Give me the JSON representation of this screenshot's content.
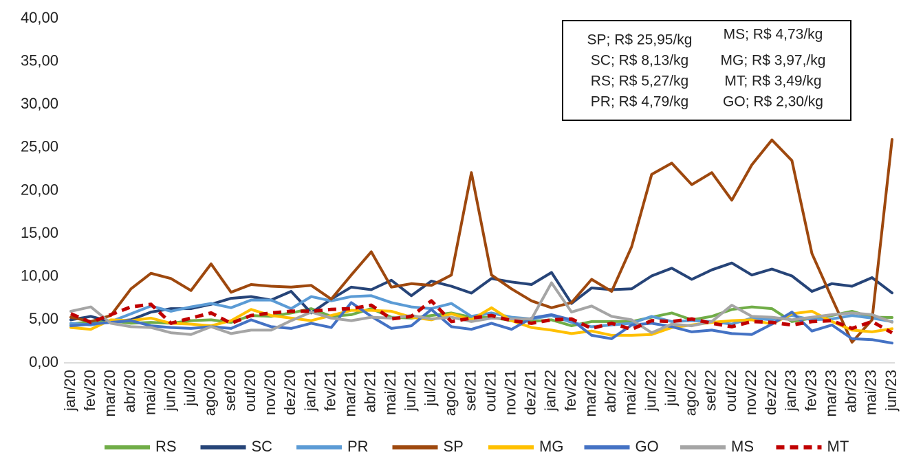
{
  "chart_data": {
    "type": "line",
    "categories": [
      "jan/20",
      "fev/20",
      "mar/20",
      "abr/20",
      "mai/20",
      "jun/20",
      "jul/20",
      "ago/20",
      "set/20",
      "out/20",
      "nov/20",
      "dez/20",
      "jan/21",
      "fev/21",
      "mar/21",
      "abr/21",
      "mai/21",
      "jun/21",
      "jul/21",
      "ago/21",
      "set/21",
      "out/21",
      "nov/21",
      "dez/21",
      "jan/22",
      "fev/22",
      "mar/22",
      "abr/22",
      "mai/22",
      "jun/22",
      "jul/22",
      "ago/22",
      "set/22",
      "out/22",
      "nov/22",
      "dez/22",
      "jan/23",
      "fev/23",
      "mar/23",
      "abr/23",
      "mai/23",
      "jun/23"
    ],
    "ylim": [
      0,
      40
    ],
    "yticks": [
      {
        "value": 0,
        "label": "0,00"
      },
      {
        "value": 5,
        "label": "5,00"
      },
      {
        "value": 10,
        "label": "10,00"
      },
      {
        "value": 15,
        "label": "15,00"
      },
      {
        "value": 20,
        "label": "20,00"
      },
      {
        "value": 25,
        "label": "25,00"
      },
      {
        "value": 30,
        "label": "30,00"
      },
      {
        "value": 35,
        "label": "35,00"
      },
      {
        "value": 40,
        "label": "40,00"
      }
    ],
    "annotations": [
      "SP; R$ 25,95/kg",
      "MS; R$ 4,73/kg",
      "SC; R$ 8,13/kg",
      "MG; R$ 3,97,/kg",
      "RS; R$ 5,27/kg",
      "MT; R$ 3,49/kg",
      "PR; R$ 4,79/kg",
      "GO; R$ 2,30/kg"
    ],
    "series": [
      {
        "name": "RS",
        "color": "#70ad47",
        "values": [
          4.5,
          4.8,
          4.9,
          4.6,
          4.7,
          4.6,
          4.9,
          5.0,
          4.7,
          5.5,
          5.4,
          5.8,
          6.3,
          5.4,
          5.6,
          6.3,
          5.3,
          5.2,
          5.5,
          5.8,
          5.3,
          5.3,
          4.9,
          4.8,
          5.0,
          4.3,
          4.8,
          4.8,
          4.8,
          5.3,
          5.8,
          5.0,
          5.4,
          6.2,
          6.5,
          6.3,
          4.8,
          5.2,
          5.5,
          6.0,
          5.3,
          5.27
        ]
      },
      {
        "name": "SC",
        "color": "#264478",
        "values": [
          5.0,
          5.4,
          4.8,
          5.0,
          5.9,
          6.3,
          6.3,
          6.8,
          7.5,
          7.7,
          7.3,
          8.3,
          5.8,
          7.4,
          8.8,
          8.5,
          9.6,
          7.8,
          9.5,
          8.9,
          8.1,
          9.8,
          9.4,
          9.1,
          10.5,
          6.9,
          8.7,
          8.5,
          8.6,
          10.1,
          11.0,
          9.7,
          10.8,
          11.6,
          10.2,
          10.9,
          10.1,
          8.3,
          9.2,
          8.9,
          9.9,
          8.13
        ]
      },
      {
        "name": "PR",
        "color": "#5b9bd5",
        "values": [
          4.6,
          4.4,
          4.8,
          5.7,
          6.6,
          6.0,
          6.5,
          6.9,
          6.4,
          7.3,
          7.3,
          6.3,
          7.7,
          7.2,
          7.7,
          7.8,
          7.0,
          6.5,
          6.3,
          6.9,
          5.4,
          5.8,
          5.3,
          5.1,
          5.5,
          4.7,
          4.2,
          4.4,
          4.6,
          5.4,
          4.8,
          4.9,
          4.8,
          4.5,
          5.2,
          5.0,
          5.5,
          5.0,
          5.1,
          5.5,
          5.2,
          4.79
        ]
      },
      {
        "name": "SP",
        "color": "#9e480e",
        "values": [
          5.3,
          4.8,
          5.5,
          8.6,
          10.4,
          9.8,
          8.4,
          11.5,
          8.2,
          9.1,
          8.9,
          8.8,
          9.0,
          7.4,
          10.2,
          12.9,
          8.8,
          9.2,
          9.0,
          10.2,
          22.1,
          10.2,
          8.6,
          7.2,
          6.4,
          7.0,
          9.7,
          8.3,
          13.5,
          21.9,
          23.2,
          20.7,
          22.1,
          18.9,
          23.0,
          25.9,
          23.5,
          12.7,
          7.5,
          2.4,
          5.0,
          25.95
        ]
      },
      {
        "name": "MG",
        "color": "#ffc000",
        "values": [
          4.1,
          3.9,
          5.0,
          4.9,
          5.2,
          4.6,
          4.5,
          4.3,
          4.9,
          6.2,
          5.5,
          5.2,
          4.9,
          5.5,
          6.1,
          6.1,
          6.0,
          5.3,
          5.0,
          5.7,
          5.0,
          6.4,
          4.9,
          4.1,
          3.8,
          3.4,
          3.7,
          3.2,
          3.2,
          3.3,
          4.1,
          4.4,
          4.7,
          4.9,
          5.0,
          4.5,
          5.7,
          6.0,
          4.8,
          3.8,
          3.6,
          3.97
        ]
      },
      {
        "name": "GO",
        "color": "#4472c4",
        "values": [
          4.3,
          4.5,
          4.7,
          4.9,
          4.3,
          4.1,
          4.0,
          4.2,
          4.0,
          5.0,
          4.2,
          4.0,
          4.6,
          4.1,
          7.0,
          5.4,
          4.0,
          4.3,
          6.2,
          4.2,
          3.9,
          4.6,
          3.9,
          5.2,
          5.6,
          5.0,
          3.2,
          2.8,
          4.4,
          4.6,
          4.2,
          3.6,
          3.8,
          3.4,
          3.3,
          4.5,
          5.9,
          3.7,
          4.4,
          2.8,
          2.7,
          2.3
        ]
      },
      {
        "name": "MS",
        "color": "#a5a5a5",
        "values": [
          6.0,
          6.5,
          4.6,
          4.2,
          4.1,
          3.5,
          3.3,
          4.2,
          3.4,
          3.8,
          3.8,
          4.9,
          5.9,
          5.2,
          4.9,
          5.3,
          5.2,
          5.5,
          5.1,
          5.3,
          4.8,
          5.2,
          5.1,
          5.1,
          9.3,
          5.9,
          6.6,
          5.4,
          5.0,
          3.5,
          4.5,
          4.3,
          4.8,
          6.7,
          5.4,
          5.3,
          5.0,
          5.3,
          5.6,
          5.8,
          5.6,
          4.73
        ]
      },
      {
        "name": "MT",
        "color": "#c00000",
        "dashed": true,
        "values": [
          5.7,
          4.7,
          5.6,
          6.5,
          6.8,
          4.6,
          5.2,
          5.8,
          4.6,
          5.5,
          5.8,
          6.0,
          6.0,
          6.2,
          6.3,
          6.7,
          5.1,
          5.4,
          7.2,
          4.8,
          5.2,
          5.5,
          4.9,
          4.6,
          5.0,
          5.1,
          4.0,
          4.6,
          3.9,
          4.9,
          4.8,
          5.1,
          4.6,
          4.2,
          4.8,
          4.7,
          4.4,
          4.8,
          4.9,
          4.0,
          4.8,
          3.49
        ]
      }
    ]
  }
}
